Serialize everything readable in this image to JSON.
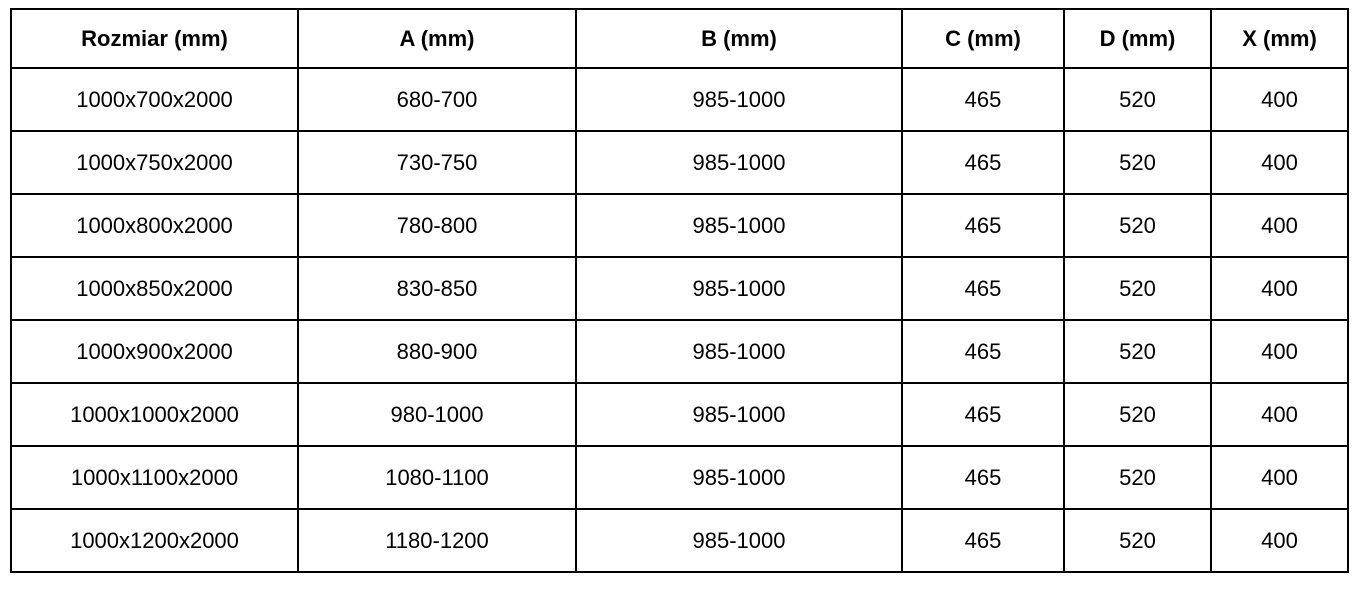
{
  "table": {
    "headers": [
      "Rozmiar (mm)",
      "A (mm)",
      "B (mm)",
      "C (mm)",
      "D (mm)",
      "X (mm)"
    ],
    "rows": [
      [
        "1000x700x2000",
        "680-700",
        "985-1000",
        "465",
        "520",
        "400"
      ],
      [
        "1000x750x2000",
        "730-750",
        "985-1000",
        "465",
        "520",
        "400"
      ],
      [
        "1000x800x2000",
        "780-800",
        "985-1000",
        "465",
        "520",
        "400"
      ],
      [
        "1000x850x2000",
        "830-850",
        "985-1000",
        "465",
        "520",
        "400"
      ],
      [
        "1000x900x2000",
        "880-900",
        "985-1000",
        "465",
        "520",
        "400"
      ],
      [
        "1000x1000x2000",
        "980-1000",
        "985-1000",
        "465",
        "520",
        "400"
      ],
      [
        "1000x1100x2000",
        "1080-1100",
        "985-1000",
        "465",
        "520",
        "400"
      ],
      [
        "1000x1200x2000",
        "1180-1200",
        "985-1000",
        "465",
        "520",
        "400"
      ]
    ]
  },
  "chart_data": {
    "type": "table",
    "columns": [
      "Rozmiar (mm)",
      "A (mm)",
      "B (mm)",
      "C (mm)",
      "D (mm)",
      "X (mm)"
    ],
    "rows": [
      [
        "1000x700x2000",
        "680-700",
        "985-1000",
        "465",
        "520",
        "400"
      ],
      [
        "1000x750x2000",
        "730-750",
        "985-1000",
        "465",
        "520",
        "400"
      ],
      [
        "1000x800x2000",
        "780-800",
        "985-1000",
        "465",
        "520",
        "400"
      ],
      [
        "1000x850x2000",
        "830-850",
        "985-1000",
        "465",
        "520",
        "400"
      ],
      [
        "1000x900x2000",
        "880-900",
        "985-1000",
        "465",
        "520",
        "400"
      ],
      [
        "1000x1000x2000",
        "980-1000",
        "985-1000",
        "465",
        "520",
        "400"
      ],
      [
        "1000x1100x2000",
        "1080-1100",
        "985-1000",
        "465",
        "520",
        "400"
      ],
      [
        "1000x1200x2000",
        "1180-1200",
        "985-1000",
        "465",
        "520",
        "400"
      ]
    ]
  },
  "colors": {
    "border": "#000000",
    "text": "#000000",
    "background": "#ffffff"
  }
}
